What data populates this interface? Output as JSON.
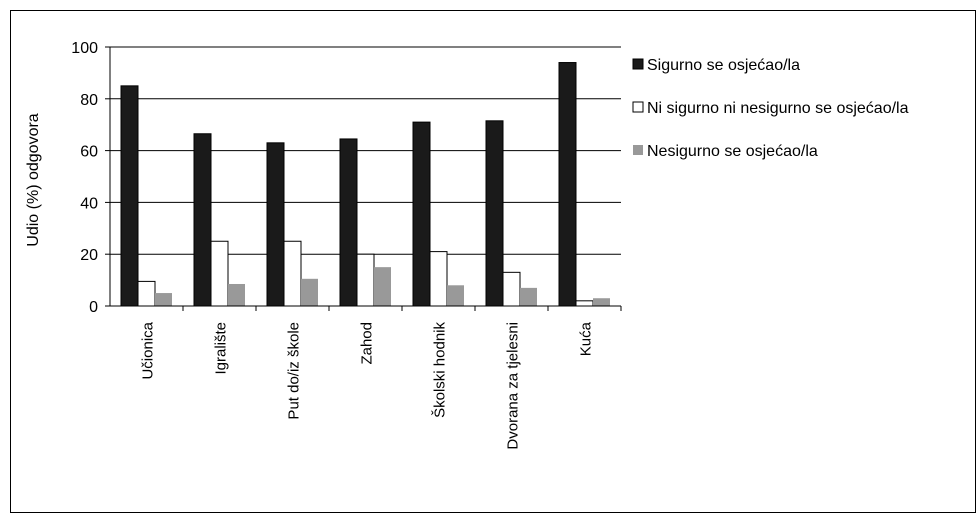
{
  "chart_data": {
    "type": "bar",
    "title": "",
    "xlabel": "",
    "ylabel": "Udio (%) odgovora",
    "ylim": [
      0,
      100
    ],
    "yticks": [
      0,
      20,
      40,
      60,
      80,
      100
    ],
    "grid": true,
    "legend_position": "right",
    "categories": [
      "Učionica",
      "Igralište",
      "Put do/iz škole",
      "Zahod",
      "Školski hodnik",
      "Dvorana za tjelesni",
      "Kuća"
    ],
    "series": [
      {
        "name": "Sigurno se osjećao/la",
        "color": "#1a1a1a",
        "values": [
          85,
          66.5,
          63,
          64.5,
          71,
          71.5,
          94
        ]
      },
      {
        "name": "Ni sigurno ni nesigurno se osjećao/la",
        "color": "#ffffff",
        "values": [
          9.5,
          25,
          25,
          20,
          21,
          13,
          2
        ]
      },
      {
        "name": "Nesigurno se osjećao/la",
        "color": "#999999",
        "values": [
          5,
          8.5,
          10.5,
          15,
          8,
          7,
          3
        ]
      }
    ]
  }
}
